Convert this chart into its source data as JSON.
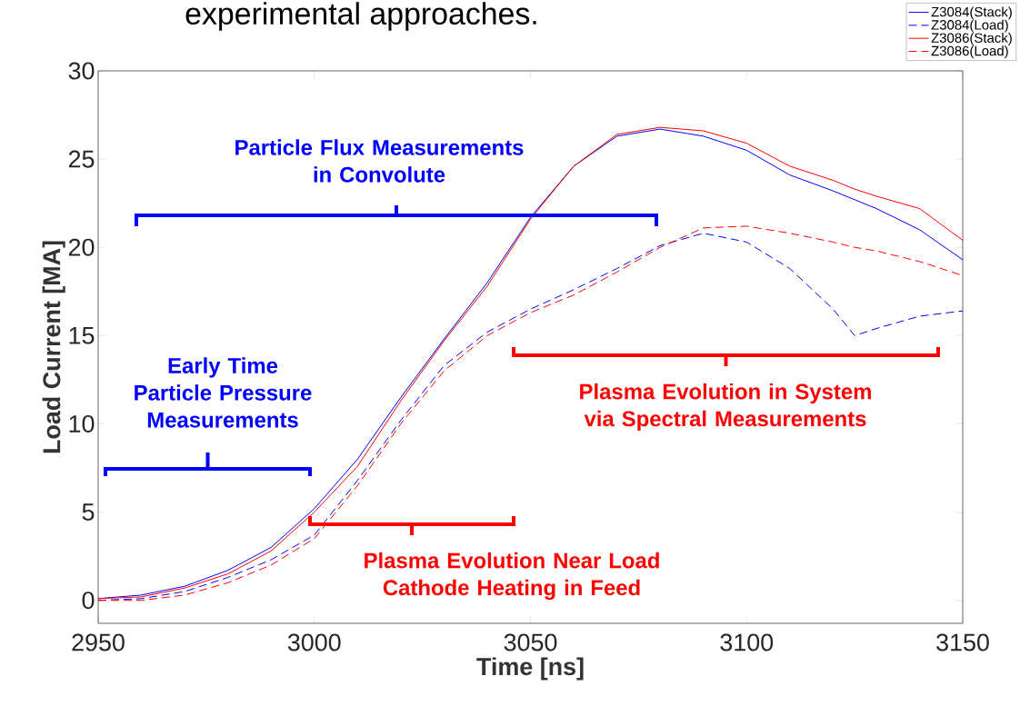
{
  "chart_data": {
    "type": "line",
    "title": "experimental approaches.",
    "xlabel": "Time [ns]",
    "ylabel": "Load Current [MA]",
    "x": [
      2950,
      2960,
      2970,
      2980,
      2990,
      3000,
      3010,
      3020,
      3030,
      3040,
      3050,
      3060,
      3070,
      3080,
      3090,
      3100,
      3110,
      3120,
      3125,
      3130,
      3140,
      3150
    ],
    "series": [
      {
        "name": "Z3084(Stack)",
        "color": "#0000ff",
        "line_style": "solid",
        "values": [
          0.1,
          0.3,
          0.8,
          1.7,
          3.0,
          5.2,
          8.0,
          11.5,
          14.8,
          18.0,
          21.7,
          24.6,
          26.3,
          26.7,
          26.3,
          25.5,
          24.1,
          23.2,
          22.7,
          22.2,
          21.0,
          19.3
        ]
      },
      {
        "name": "Z3084(Load)",
        "color": "#0000ff",
        "line_style": "dashed",
        "values": [
          0.0,
          0.1,
          0.5,
          1.3,
          2.3,
          3.7,
          6.8,
          10.2,
          13.3,
          15.2,
          16.5,
          17.6,
          18.8,
          20.1,
          20.8,
          20.3,
          18.8,
          16.5,
          15.0,
          15.4,
          16.1,
          16.4
        ]
      },
      {
        "name": "Z3086(Stack)",
        "color": "#ff0000",
        "line_style": "solid",
        "values": [
          0.1,
          0.2,
          0.7,
          1.5,
          2.8,
          5.0,
          7.6,
          11.3,
          14.7,
          17.8,
          21.6,
          24.6,
          26.4,
          26.8,
          26.6,
          25.9,
          24.6,
          23.8,
          23.3,
          22.9,
          22.2,
          20.4
        ]
      },
      {
        "name": "Z3086(Load)",
        "color": "#ff0000",
        "line_style": "dashed",
        "values": [
          0.0,
          0.0,
          0.3,
          1.0,
          2.0,
          3.5,
          6.5,
          10.0,
          13.0,
          15.0,
          16.3,
          17.3,
          18.6,
          20.0,
          21.1,
          21.2,
          20.8,
          20.3,
          20.0,
          19.8,
          19.2,
          18.4
        ]
      }
    ],
    "xlim": [
      2950,
      3150
    ],
    "ylim": [
      -1.3,
      30
    ],
    "xticks": [
      2950,
      3000,
      3050,
      3100,
      3150
    ],
    "yticks": [
      0,
      5,
      10,
      15,
      20,
      25,
      30
    ],
    "grid": false,
    "legend": "top right",
    "marker": "none",
    "annotations": [
      "Particle Flux Measurements\nin Convolute",
      "Early Time\nParticle Pressure\nMeasurements",
      "Plasma Evolution Near Load\nCathode Heating in Feed",
      "Plasma Evolution in System\nvia Spectral Measurements"
    ]
  }
}
